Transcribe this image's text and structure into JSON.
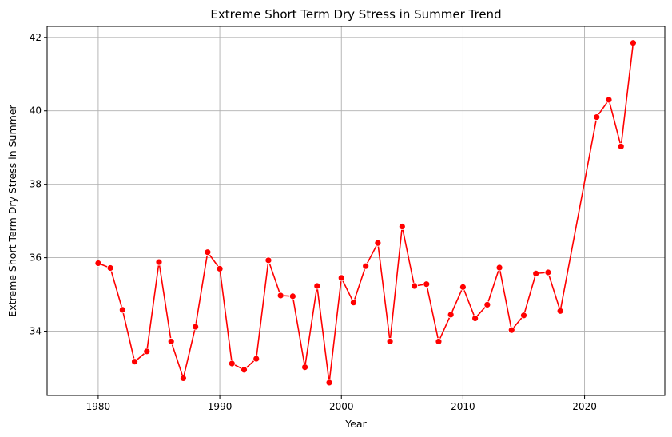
{
  "chart_data": {
    "type": "line",
    "title": "Extreme Short Term Dry Stress in Summer Trend",
    "xlabel": "Year",
    "ylabel": "Extreme Short Term Dry Stress in Summer",
    "xlim": [
      1975.8,
      2026.6
    ],
    "ylim": [
      32.25,
      42.3
    ],
    "xticks": [
      1980,
      1990,
      2000,
      2010,
      2020
    ],
    "yticks": [
      34,
      36,
      38,
      40,
      42
    ],
    "grid": true,
    "color": "#ff0000",
    "series": [
      {
        "x": [
          1980,
          1981,
          1982,
          1983,
          1984,
          1985,
          1986,
          1987,
          1988,
          1989,
          1990,
          1991,
          1992,
          1993,
          1994,
          1995,
          1996,
          1997,
          1998,
          1999,
          2000,
          2001,
          2002,
          2003,
          2004,
          2005,
          2006,
          2007,
          2008,
          2009,
          2010,
          2011,
          2012,
          2013,
          2014,
          2015,
          2016,
          2017,
          2018,
          2021,
          2022,
          2023,
          2024
        ],
        "values": [
          35.85,
          35.72,
          34.58,
          33.17,
          33.45,
          35.88,
          33.72,
          32.72,
          34.12,
          36.15,
          35.7,
          33.12,
          32.95,
          33.25,
          35.93,
          34.97,
          34.95,
          33.02,
          35.23,
          32.6,
          35.45,
          34.78,
          35.77,
          36.4,
          33.72,
          36.85,
          35.23,
          35.28,
          33.72,
          34.45,
          35.2,
          34.35,
          34.72,
          35.73,
          34.03,
          34.43,
          35.57,
          35.6,
          34.55,
          39.83,
          40.3,
          39.03,
          41.85
        ]
      }
    ]
  }
}
